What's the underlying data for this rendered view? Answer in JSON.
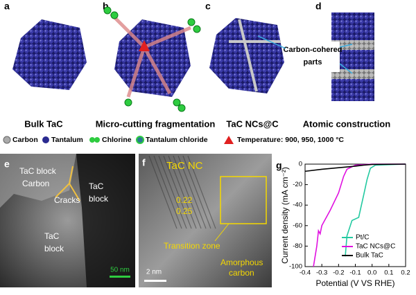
{
  "panels": [
    {
      "label": "a",
      "caption": "Bulk TaC"
    },
    {
      "label": "b",
      "caption": "Micro-cutting fragmentation"
    },
    {
      "label": "c",
      "caption": "TaC NCs@C"
    },
    {
      "label": "d",
      "caption": "Atomic construction"
    }
  ],
  "annotation": [
    "Carbon-cohered",
    "parts"
  ],
  "legend": [
    "Carbon",
    "Tantalum",
    "Chlorine",
    "Tantalum chloride",
    "Temperature: 900, 950, 1000 °C"
  ],
  "panel_e": {
    "label": "e",
    "texts": [
      "TaC block",
      "Carbon",
      "Cracks"
    ],
    "right_block": [
      "TaC",
      "block"
    ],
    "bottom_block": [
      "TaC",
      "block"
    ],
    "scale_bar": "50 nm"
  },
  "panel_f": {
    "label": "f",
    "title": "TaC NC",
    "spacings": [
      "0.22",
      "0.25"
    ],
    "transition": "Transition zone",
    "amorphous": [
      "Amorphous",
      "carbon"
    ],
    "scale_bar": "2 nm"
  },
  "chart_data": {
    "type": "line",
    "panel_label": "g",
    "xlabel": "Potential (V VS RHE)",
    "ylabel": "Current density (mA cm⁻²)",
    "xlim": [
      -0.4,
      0.2
    ],
    "ylim": [
      -100,
      0
    ],
    "xticks": [
      -0.4,
      -0.3,
      -0.2,
      -0.1,
      {
        "value": 0,
        "label": "0.0"
      },
      0.1,
      0.2
    ],
    "yticks": [
      0,
      -20,
      -40,
      -60,
      -80,
      -100
    ],
    "legend": "lower right",
    "series": [
      {
        "name": "Pt/C",
        "color": "#22c9a0",
        "x": [
          -0.16,
          -0.15,
          -0.12,
          -0.08,
          -0.05,
          -0.03,
          -0.01,
          0.02,
          0.2
        ],
        "values": [
          -90,
          -70,
          -55,
          -52,
          -30,
          -15,
          -4,
          -1,
          0
        ]
      },
      {
        "name": "TaC NCs@C",
        "color": "#e010e0",
        "x": [
          -0.35,
          -0.33,
          -0.32,
          -0.31,
          -0.3,
          -0.25,
          -0.2,
          -0.17,
          -0.15,
          -0.1,
          0.0,
          0.2
        ],
        "values": [
          -100,
          -80,
          -65,
          -68,
          -60,
          -45,
          -28,
          -12,
          -5,
          -1,
          0,
          0
        ]
      },
      {
        "name": "Bulk TaC",
        "color": "#000000",
        "x": [
          -0.4,
          -0.3,
          -0.2,
          -0.1,
          -0.05,
          0.0,
          0.2
        ],
        "values": [
          -7,
          -5,
          -3.5,
          -2,
          -1,
          -0.3,
          0
        ]
      }
    ]
  }
}
